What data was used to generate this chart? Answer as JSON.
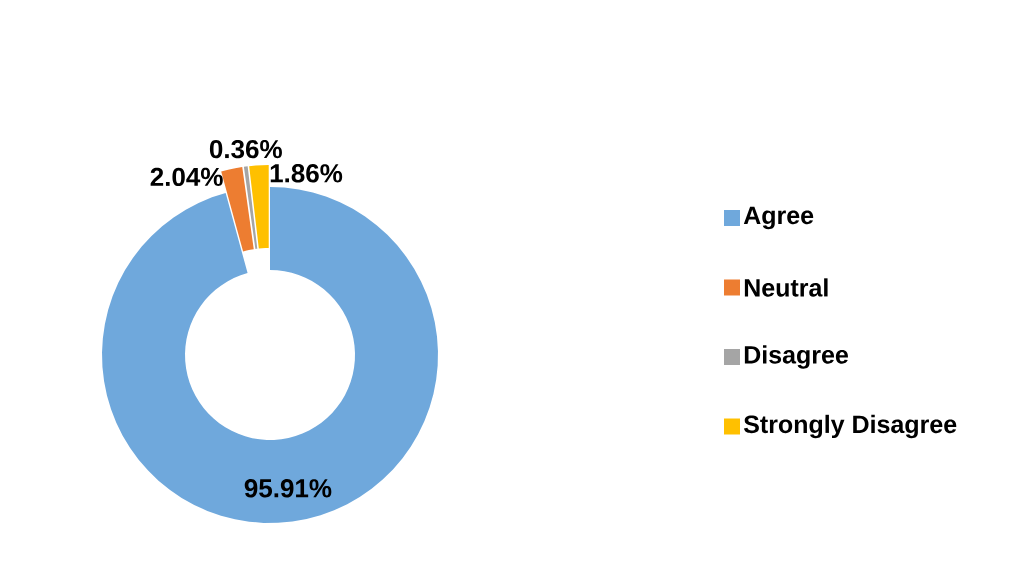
{
  "chart_data": {
    "type": "donut",
    "categories": [
      "Agree",
      "Neutral",
      "Disagree",
      "Strongly Disagree"
    ],
    "values": [
      95.91,
      2.04,
      0.36,
      1.86
    ],
    "value_labels": [
      "95.91%",
      "2.04%",
      "0.36%",
      "1.86%"
    ],
    "colors": [
      "#6fa8dc",
      "#ed7d31",
      "#a5a5a5",
      "#ffc000"
    ],
    "legend": "right"
  }
}
